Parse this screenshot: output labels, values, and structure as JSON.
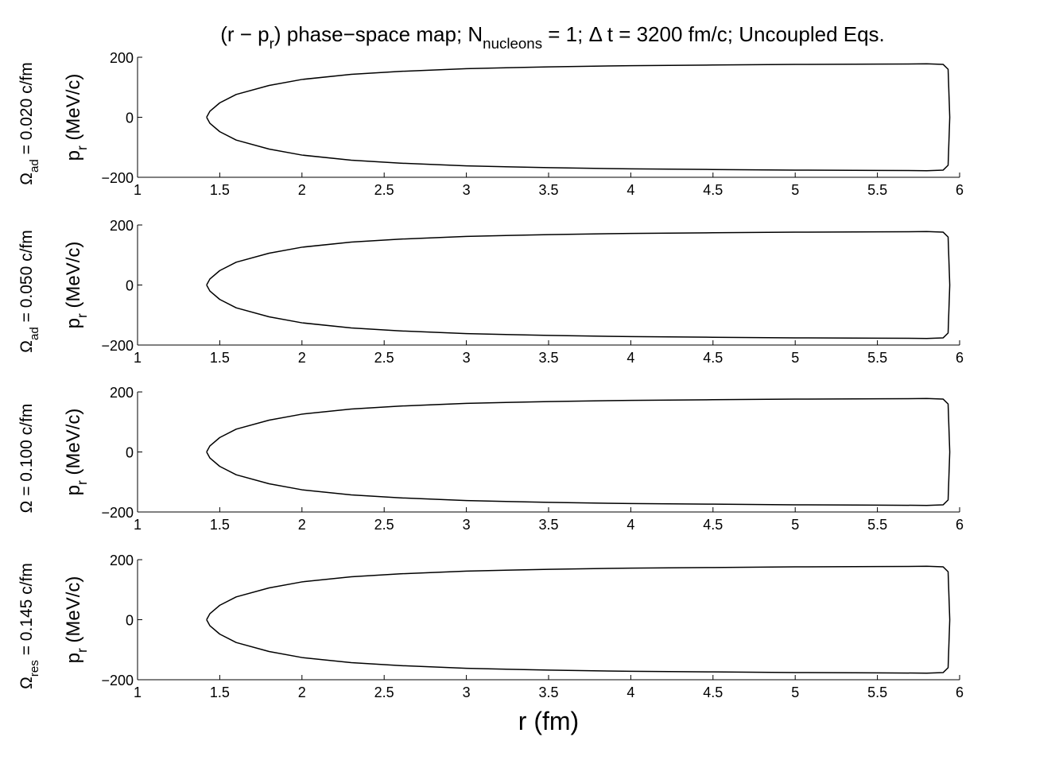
{
  "title": {
    "part1": "(r − p",
    "sub1": "r",
    "part2": ") phase−space map; N",
    "sub2": "nucleons",
    "part3": " = 1; Δ t = 3200 fm/c; Uncoupled Eqs."
  },
  "xlabel": "r (fm)",
  "ylabel": {
    "base": "p",
    "sub": "r",
    "unit": " (MeV/c)"
  },
  "colors": {
    "line": "#000000",
    "background": "#ffffff"
  },
  "chart_data": [
    {
      "type": "line",
      "row_label": {
        "symbol": "Ω",
        "sub": "ad",
        "text": " = 0.020 c/fm"
      },
      "xlim": [
        1,
        6
      ],
      "ylim": [
        -200,
        200
      ],
      "xticks": [
        1,
        1.5,
        2,
        2.5,
        3,
        3.5,
        4,
        4.5,
        5,
        5.5,
        6
      ],
      "xtick_labels": [
        "1",
        "1.5",
        "2",
        "2.5",
        "3",
        "3.5",
        "4",
        "4.5",
        "5",
        "5.5",
        "6"
      ],
      "yticks": [
        -200,
        0,
        200
      ],
      "ytick_labels": [
        "−200",
        "0",
        "200"
      ],
      "series": [
        {
          "x": [
            1.42,
            1.44,
            1.5,
            1.6,
            1.8,
            2.0,
            2.3,
            2.6,
            3.0,
            3.5,
            4.0,
            4.5,
            5.0,
            5.5,
            5.8,
            5.9,
            5.93,
            5.94,
            5.93,
            5.9,
            5.8,
            5.5,
            5.0,
            4.5,
            4.0,
            3.5,
            3.0,
            2.6,
            2.3,
            2.0,
            1.8,
            1.6,
            1.5,
            1.44,
            1.42
          ],
          "y": [
            0,
            20,
            48,
            76,
            106,
            126,
            143,
            153,
            162,
            168,
            172,
            174,
            176,
            177,
            178,
            176,
            160,
            0,
            -160,
            -176,
            -178,
            -177,
            -176,
            -174,
            -172,
            -168,
            -162,
            -153,
            -143,
            -126,
            -106,
            -76,
            -48,
            -20,
            0
          ]
        }
      ]
    },
    {
      "type": "line",
      "row_label": {
        "symbol": "Ω",
        "sub": "ad",
        "text": " = 0.050 c/fm"
      },
      "xlim": [
        1,
        6
      ],
      "ylim": [
        -200,
        200
      ],
      "xticks": [
        1,
        1.5,
        2,
        2.5,
        3,
        3.5,
        4,
        4.5,
        5,
        5.5,
        6
      ],
      "xtick_labels": [
        "1",
        "1.5",
        "2",
        "2.5",
        "3",
        "3.5",
        "4",
        "4.5",
        "5",
        "5.5",
        "6"
      ],
      "yticks": [
        -200,
        0,
        200
      ],
      "ytick_labels": [
        "−200",
        "0",
        "200"
      ],
      "series": [
        {
          "x": [
            1.42,
            1.44,
            1.5,
            1.6,
            1.8,
            2.0,
            2.3,
            2.6,
            3.0,
            3.5,
            4.0,
            4.5,
            5.0,
            5.5,
            5.8,
            5.9,
            5.93,
            5.94,
            5.93,
            5.9,
            5.8,
            5.5,
            5.0,
            4.5,
            4.0,
            3.5,
            3.0,
            2.6,
            2.3,
            2.0,
            1.8,
            1.6,
            1.5,
            1.44,
            1.42
          ],
          "y": [
            0,
            20,
            48,
            76,
            106,
            126,
            143,
            153,
            162,
            168,
            172,
            174,
            176,
            177,
            178,
            176,
            160,
            0,
            -160,
            -176,
            -178,
            -177,
            -176,
            -174,
            -172,
            -168,
            -162,
            -153,
            -143,
            -126,
            -106,
            -76,
            -48,
            -20,
            0
          ]
        }
      ]
    },
    {
      "type": "line",
      "row_label": {
        "symbol": "Ω",
        "sub": "",
        "text": " = 0.100 c/fm"
      },
      "xlim": [
        1,
        6
      ],
      "ylim": [
        -200,
        200
      ],
      "xticks": [
        1,
        1.5,
        2,
        2.5,
        3,
        3.5,
        4,
        4.5,
        5,
        5.5,
        6
      ],
      "xtick_labels": [
        "1",
        "1.5",
        "2",
        "2.5",
        "3",
        "3.5",
        "4",
        "4.5",
        "5",
        "5.5",
        "6"
      ],
      "yticks": [
        -200,
        0,
        200
      ],
      "ytick_labels": [
        "−200",
        "0",
        "200"
      ],
      "series": [
        {
          "x": [
            1.42,
            1.44,
            1.5,
            1.6,
            1.8,
            2.0,
            2.3,
            2.6,
            3.0,
            3.5,
            4.0,
            4.5,
            5.0,
            5.5,
            5.8,
            5.9,
            5.93,
            5.94,
            5.93,
            5.9,
            5.8,
            5.5,
            5.0,
            4.5,
            4.0,
            3.5,
            3.0,
            2.6,
            2.3,
            2.0,
            1.8,
            1.6,
            1.5,
            1.44,
            1.42
          ],
          "y": [
            0,
            20,
            48,
            76,
            106,
            126,
            143,
            153,
            162,
            168,
            172,
            174,
            176,
            177,
            178,
            176,
            160,
            0,
            -160,
            -176,
            -178,
            -177,
            -176,
            -174,
            -172,
            -168,
            -162,
            -153,
            -143,
            -126,
            -106,
            -76,
            -48,
            -20,
            0
          ]
        }
      ]
    },
    {
      "type": "line",
      "row_label": {
        "symbol": "Ω",
        "sub": "res",
        "text": " = 0.145 c/fm"
      },
      "xlim": [
        1,
        6
      ],
      "ylim": [
        -200,
        200
      ],
      "xticks": [
        1,
        1.5,
        2,
        2.5,
        3,
        3.5,
        4,
        4.5,
        5,
        5.5,
        6
      ],
      "xtick_labels": [
        "1",
        "1.5",
        "2",
        "2.5",
        "3",
        "3.5",
        "4",
        "4.5",
        "5",
        "5.5",
        "6"
      ],
      "yticks": [
        -200,
        0,
        200
      ],
      "ytick_labels": [
        "−200",
        "0",
        "200"
      ],
      "series": [
        {
          "x": [
            1.42,
            1.44,
            1.5,
            1.6,
            1.8,
            2.0,
            2.3,
            2.6,
            3.0,
            3.5,
            4.0,
            4.5,
            5.0,
            5.5,
            5.8,
            5.9,
            5.93,
            5.94,
            5.93,
            5.9,
            5.8,
            5.5,
            5.0,
            4.5,
            4.0,
            3.5,
            3.0,
            2.6,
            2.3,
            2.0,
            1.8,
            1.6,
            1.5,
            1.44,
            1.42
          ],
          "y": [
            0,
            20,
            48,
            76,
            106,
            126,
            143,
            153,
            162,
            168,
            172,
            174,
            176,
            177,
            178,
            176,
            160,
            0,
            -160,
            -176,
            -178,
            -177,
            -176,
            -174,
            -172,
            -168,
            -162,
            -153,
            -143,
            -126,
            -106,
            -76,
            -48,
            -20,
            0
          ]
        }
      ]
    }
  ]
}
